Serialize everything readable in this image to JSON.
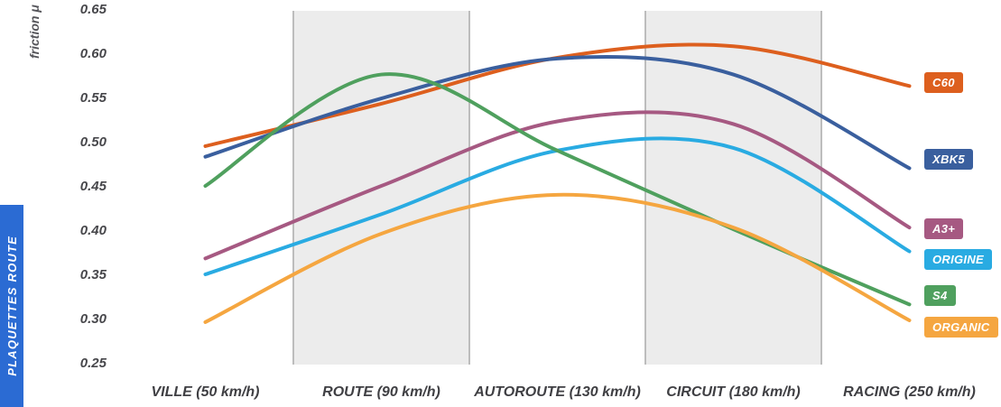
{
  "left_ribbon": {
    "label": "PLAQUETTES ROUTE",
    "bg": "#2B6BD3"
  },
  "y_axis": {
    "title": "friction μ",
    "ticks": [
      "0.65",
      "0.60",
      "0.55",
      "0.50",
      "0.45",
      "0.40",
      "0.35",
      "0.30",
      "0.25"
    ]
  },
  "chart_data": {
    "type": "line",
    "title": "",
    "xlabel": "",
    "ylabel": "friction μ",
    "ylim": [
      0.25,
      0.65
    ],
    "ytick_step": 0.05,
    "grid": "vertical-column-bands",
    "legend_position": "right",
    "categories": [
      "VILLE (50 km/h)",
      "ROUTE (90 km/h)",
      "AUTOROUTE (130 km/h)",
      "CIRCUIT (180 km/h)",
      "RACING (250 km/h)"
    ],
    "shaded_columns": [
      1,
      3
    ],
    "series": [
      {
        "name": "C60",
        "color": "#DD5F1E",
        "values": [
          0.497,
          0.545,
          0.597,
          0.61,
          0.565
        ]
      },
      {
        "name": "XBK5",
        "color": "#3A5F9E",
        "values": [
          0.485,
          0.551,
          0.596,
          0.578,
          0.472
        ]
      },
      {
        "name": "A3+",
        "color": "#A65982",
        "values": [
          0.37,
          0.452,
          0.525,
          0.522,
          0.405
        ]
      },
      {
        "name": "ORIGINE",
        "color": "#29ABE2",
        "values": [
          0.352,
          0.42,
          0.492,
          0.495,
          0.378
        ]
      },
      {
        "name": "S4",
        "color": "#4FA05E",
        "values": [
          0.452,
          0.578,
          0.492,
          0.403,
          0.318
        ]
      },
      {
        "name": "ORGANIC",
        "color": "#F5A640",
        "values": [
          0.298,
          0.398,
          0.442,
          0.405,
          0.3
        ]
      }
    ]
  }
}
